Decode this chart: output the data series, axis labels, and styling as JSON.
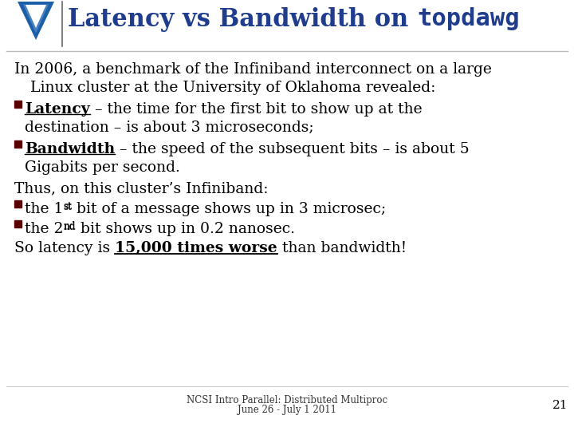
{
  "title_normal": "Latency vs Bandwidth on ",
  "title_mono": "topdawg",
  "title_color": "#1f3d8c",
  "title_fontsize": 22,
  "bg_color": "#ffffff",
  "bullet_color": "#5a0000",
  "body_fontsize": 13.5,
  "footer_text1": "NCSI Intro Parallel: Distributed Multiproc",
  "footer_text2": "June 26 - July 1 2011",
  "footer_page": "21",
  "tri_color": "#1a5fa8",
  "tri_inner_color": "#5080c0",
  "content": [
    {
      "type": "para2",
      "line1": "In 2006, a benchmark of the Infiniband interconnect on a large",
      "line2": "Linux cluster at the University of Oklahoma revealed:"
    },
    {
      "type": "bullet",
      "label": "Latency",
      "line1": " – the time for the first bit to show up at the",
      "line2": "destination – is about 3 microseconds;"
    },
    {
      "type": "bullet",
      "label": "Bandwidth",
      "line1": " – the speed of the subsequent bits – is about 5",
      "line2": "Gigabits per second."
    },
    {
      "type": "para1",
      "line1": "Thus, on this cluster’s Infiniband:"
    },
    {
      "type": "bullet2",
      "pre": "the 1",
      "sup": "st",
      "post": " bit of a message shows up in 3 microsec;"
    },
    {
      "type": "bullet2",
      "pre": "the 2",
      "sup": "nd",
      "post": " bit shows up in 0.2 nanosec."
    },
    {
      "type": "para_special",
      "before": "So latency is ",
      "bold": "15,000 times worse",
      "after": " than bandwidth!"
    }
  ]
}
